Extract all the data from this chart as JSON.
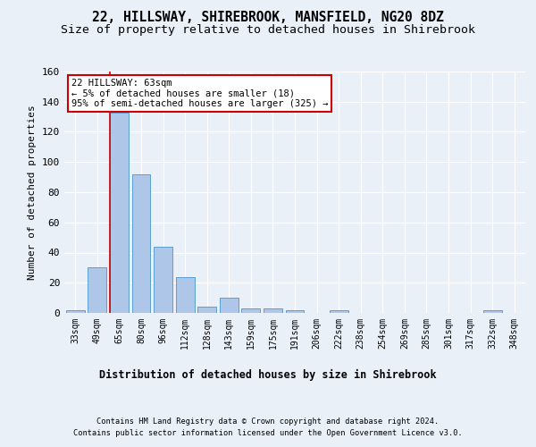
{
  "title1": "22, HILLSWAY, SHIREBROOK, MANSFIELD, NG20 8DZ",
  "title2": "Size of property relative to detached houses in Shirebrook",
  "xlabel": "Distribution of detached houses by size in Shirebrook",
  "ylabel": "Number of detached properties",
  "bar_labels": [
    "33sqm",
    "49sqm",
    "65sqm",
    "80sqm",
    "96sqm",
    "112sqm",
    "128sqm",
    "143sqm",
    "159sqm",
    "175sqm",
    "191sqm",
    "206sqm",
    "222sqm",
    "238sqm",
    "254sqm",
    "269sqm",
    "285sqm",
    "301sqm",
    "317sqm",
    "332sqm",
    "348sqm"
  ],
  "bar_values": [
    2,
    30,
    133,
    92,
    44,
    24,
    4,
    10,
    3,
    3,
    2,
    0,
    2,
    0,
    0,
    0,
    0,
    0,
    0,
    2,
    0
  ],
  "bar_color": "#aec6e8",
  "bar_edge_color": "#5a9fd4",
  "ylim": [
    0,
    160
  ],
  "yticks": [
    0,
    20,
    40,
    60,
    80,
    100,
    120,
    140,
    160
  ],
  "annotation_text": "22 HILLSWAY: 63sqm\n← 5% of detached houses are smaller (18)\n95% of semi-detached houses are larger (325) →",
  "annotation_border_color": "#cc0000",
  "footer1": "Contains HM Land Registry data © Crown copyright and database right 2024.",
  "footer2": "Contains public sector information licensed under the Open Government Licence v3.0.",
  "bg_color": "#eaf0f8",
  "plot_bg_color": "#eaf0f8",
  "grid_color": "#ffffff",
  "title_fontsize": 10.5,
  "subtitle_fontsize": 9.5
}
